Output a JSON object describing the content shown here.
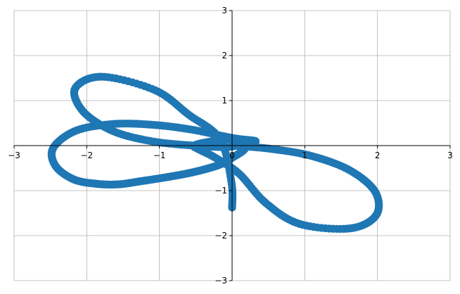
{
  "chart_data": {
    "type": "scatter",
    "title": "",
    "xlabel": "",
    "ylabel": "",
    "xlim": [
      -3,
      3
    ],
    "ylim": [
      -3,
      3
    ],
    "grid": true,
    "legend": "none",
    "spines": "centered",
    "x_ticks": [
      -3,
      -2,
      -1,
      0,
      1,
      2,
      3
    ],
    "y_ticks": [
      -3,
      -2,
      -1,
      1,
      2,
      3
    ],
    "x_tick_labels": [
      "−3",
      "−2",
      "−1",
      "0",
      "1",
      "2",
      "3"
    ],
    "y_tick_labels": [
      "−3",
      "−2",
      "−1",
      "1",
      "2",
      "3"
    ],
    "series": [
      {
        "color": "#1f77b4",
        "curve": "polar rose r(θ) sampled densely over 0 ≤ θ < 2π",
        "x": [
          0.0,
          0.52,
          1.09,
          1.62,
          1.97,
          1.98,
          1.62,
          0.93,
          0.46,
          0.1,
          -0.22,
          -0.46,
          -0.52,
          -0.33,
          0.0,
          0.19,
          0.16,
          0.0,
          -0.15,
          -0.36,
          -0.62,
          -0.93,
          -1.25,
          -1.56,
          -1.86,
          -2.18,
          -2.43,
          -2.46,
          -2.15,
          -1.63,
          -1.08,
          -0.54,
          0.0,
          0.32,
          0.16,
          -0.06,
          -0.53,
          -1.12,
          -1.65,
          -2.05,
          -2.16,
          -1.79,
          -1.06,
          -0.6,
          -0.17,
          -0.01,
          0.0
        ],
        "y": [
          0.0,
          -0.07,
          -0.23,
          -0.55,
          -1.03,
          -1.55,
          -1.84,
          -1.74,
          -1.27,
          -0.63,
          -0.28,
          -0.08,
          0.0,
          0.08,
          0.15,
          0.05,
          -0.1,
          -0.27,
          -0.41,
          -0.52,
          -0.62,
          -0.71,
          -0.79,
          -0.86,
          -0.85,
          -0.75,
          -0.45,
          -0.05,
          0.33,
          0.48,
          0.46,
          0.35,
          0.17,
          0.1,
          0.05,
          -0.03,
          0.0,
          0.1,
          0.33,
          0.76,
          1.27,
          1.53,
          1.23,
          0.69,
          0.15,
          -0.8,
          -1.4
        ]
      }
    ]
  }
}
